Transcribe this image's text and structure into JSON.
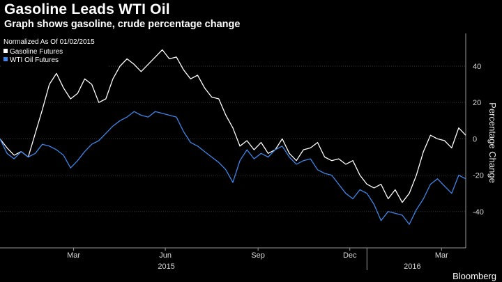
{
  "header": {
    "title": "Gasoline Leads WTI Oil",
    "subtitle": "Graph shows gasoline, crude percentage change"
  },
  "brand": "Bloomberg",
  "colors": {
    "background": "#000000",
    "gasoline": "#ffffff",
    "wti": "#3f86e8",
    "grid": "#3a3a3a"
  },
  "chart_data": {
    "type": "line",
    "title": "Gasoline Leads WTI Oil",
    "subtitle": "Graph shows gasoline, crude percentage change",
    "ylabel": "Percentage Change",
    "legend": {
      "title": "Normalized As Of 01/02/2015",
      "placement": "top-left",
      "entries": [
        "Gasoline Futures",
        "WTI Oil Futures"
      ]
    },
    "xlim": [
      "2015-01-02",
      "2016-04-08"
    ],
    "ylim": [
      -60,
      58
    ],
    "yticks": [
      -40,
      -20,
      0,
      20,
      40
    ],
    "xticks": [
      {
        "date": "2015-03-16",
        "label": "Mar"
      },
      {
        "date": "2015-06-15",
        "label": "Jun"
      },
      {
        "date": "2015-09-15",
        "label": "Sep"
      },
      {
        "date": "2015-12-15",
        "label": "Dec"
      },
      {
        "date": "2016-03-15",
        "label": "Mar"
      }
    ],
    "year_labels": [
      {
        "date": "2015-06-16",
        "label": "2015"
      },
      {
        "date": "2016-02-15",
        "label": "2016"
      }
    ],
    "grid": "horizontal",
    "series": [
      {
        "name": "Gasoline Futures",
        "points": [
          [
            "2015-01-02",
            0
          ],
          [
            "2015-01-09",
            -5
          ],
          [
            "2015-01-16",
            -9
          ],
          [
            "2015-01-23",
            -7
          ],
          [
            "2015-01-30",
            -10
          ],
          [
            "2015-02-06",
            3
          ],
          [
            "2015-02-13",
            16
          ],
          [
            "2015-02-20",
            30
          ],
          [
            "2015-02-27",
            36
          ],
          [
            "2015-03-06",
            28
          ],
          [
            "2015-03-13",
            22
          ],
          [
            "2015-03-20",
            25
          ],
          [
            "2015-03-27",
            33
          ],
          [
            "2015-04-03",
            30
          ],
          [
            "2015-04-10",
            20
          ],
          [
            "2015-04-17",
            22
          ],
          [
            "2015-04-24",
            33
          ],
          [
            "2015-05-01",
            40
          ],
          [
            "2015-05-08",
            44
          ],
          [
            "2015-05-15",
            41
          ],
          [
            "2015-05-22",
            37
          ],
          [
            "2015-05-29",
            41
          ],
          [
            "2015-06-05",
            45
          ],
          [
            "2015-06-12",
            49
          ],
          [
            "2015-06-19",
            44
          ],
          [
            "2015-06-26",
            45
          ],
          [
            "2015-07-03",
            38
          ],
          [
            "2015-07-10",
            33
          ],
          [
            "2015-07-17",
            35
          ],
          [
            "2015-07-24",
            28
          ],
          [
            "2015-07-31",
            23
          ],
          [
            "2015-08-07",
            22
          ],
          [
            "2015-08-14",
            13
          ],
          [
            "2015-08-21",
            6
          ],
          [
            "2015-08-28",
            -4
          ],
          [
            "2015-09-04",
            -1
          ],
          [
            "2015-09-11",
            -6
          ],
          [
            "2015-09-18",
            -2
          ],
          [
            "2015-09-25",
            -8
          ],
          [
            "2015-10-02",
            -6
          ],
          [
            "2015-10-09",
            0
          ],
          [
            "2015-10-16",
            -8
          ],
          [
            "2015-10-23",
            -12
          ],
          [
            "2015-10-30",
            -6
          ],
          [
            "2015-11-06",
            -5
          ],
          [
            "2015-11-13",
            -2
          ],
          [
            "2015-11-20",
            -10
          ],
          [
            "2015-11-27",
            -12
          ],
          [
            "2015-12-04",
            -11
          ],
          [
            "2015-12-11",
            -14
          ],
          [
            "2015-12-18",
            -12
          ],
          [
            "2015-12-25",
            -20
          ],
          [
            "2016-01-01",
            -25
          ],
          [
            "2016-01-08",
            -27
          ],
          [
            "2016-01-15",
            -25
          ],
          [
            "2016-01-22",
            -33
          ],
          [
            "2016-01-29",
            -28
          ],
          [
            "2016-02-05",
            -35
          ],
          [
            "2016-02-12",
            -30
          ],
          [
            "2016-02-19",
            -20
          ],
          [
            "2016-02-26",
            -7
          ],
          [
            "2016-03-04",
            2
          ],
          [
            "2016-03-11",
            0
          ],
          [
            "2016-03-18",
            -1
          ],
          [
            "2016-03-25",
            -5
          ],
          [
            "2016-04-01",
            6
          ],
          [
            "2016-04-08",
            2
          ]
        ]
      },
      {
        "name": "WTI Oil Futures",
        "points": [
          [
            "2015-01-02",
            0
          ],
          [
            "2015-01-09",
            -8
          ],
          [
            "2015-01-16",
            -11
          ],
          [
            "2015-01-23",
            -7
          ],
          [
            "2015-01-30",
            -10
          ],
          [
            "2015-02-06",
            -8
          ],
          [
            "2015-02-13",
            -3
          ],
          [
            "2015-02-20",
            -4
          ],
          [
            "2015-02-27",
            -6
          ],
          [
            "2015-03-06",
            -9
          ],
          [
            "2015-03-13",
            -16
          ],
          [
            "2015-03-20",
            -12
          ],
          [
            "2015-03-27",
            -7
          ],
          [
            "2015-04-03",
            -3
          ],
          [
            "2015-04-10",
            -1
          ],
          [
            "2015-04-17",
            3
          ],
          [
            "2015-04-24",
            7
          ],
          [
            "2015-05-01",
            10
          ],
          [
            "2015-05-08",
            12
          ],
          [
            "2015-05-15",
            15
          ],
          [
            "2015-05-22",
            13
          ],
          [
            "2015-05-29",
            12
          ],
          [
            "2015-06-05",
            15
          ],
          [
            "2015-06-12",
            14
          ],
          [
            "2015-06-19",
            13
          ],
          [
            "2015-06-26",
            12
          ],
          [
            "2015-07-03",
            4
          ],
          [
            "2015-07-10",
            -2
          ],
          [
            "2015-07-17",
            -4
          ],
          [
            "2015-07-24",
            -7
          ],
          [
            "2015-07-31",
            -10
          ],
          [
            "2015-08-07",
            -13
          ],
          [
            "2015-08-14",
            -17
          ],
          [
            "2015-08-21",
            -24
          ],
          [
            "2015-08-28",
            -12
          ],
          [
            "2015-09-04",
            -6
          ],
          [
            "2015-09-11",
            -11
          ],
          [
            "2015-09-18",
            -8
          ],
          [
            "2015-09-25",
            -10
          ],
          [
            "2015-10-02",
            -6
          ],
          [
            "2015-10-09",
            -4
          ],
          [
            "2015-10-16",
            -10
          ],
          [
            "2015-10-23",
            -14
          ],
          [
            "2015-10-30",
            -12
          ],
          [
            "2015-11-06",
            -11
          ],
          [
            "2015-11-13",
            -17
          ],
          [
            "2015-11-20",
            -19
          ],
          [
            "2015-11-27",
            -20
          ],
          [
            "2015-12-04",
            -25
          ],
          [
            "2015-12-11",
            -30
          ],
          [
            "2015-12-18",
            -33
          ],
          [
            "2015-12-25",
            -28
          ],
          [
            "2016-01-01",
            -30
          ],
          [
            "2016-01-08",
            -36
          ],
          [
            "2016-01-15",
            -45
          ],
          [
            "2016-01-22",
            -40
          ],
          [
            "2016-01-29",
            -41
          ],
          [
            "2016-02-05",
            -42
          ],
          [
            "2016-02-12",
            -47
          ],
          [
            "2016-02-19",
            -39
          ],
          [
            "2016-02-26",
            -33
          ],
          [
            "2016-03-04",
            -25
          ],
          [
            "2016-03-11",
            -22
          ],
          [
            "2016-03-18",
            -26
          ],
          [
            "2016-03-25",
            -30
          ],
          [
            "2016-04-01",
            -20
          ],
          [
            "2016-04-08",
            -22
          ]
        ]
      }
    ]
  }
}
